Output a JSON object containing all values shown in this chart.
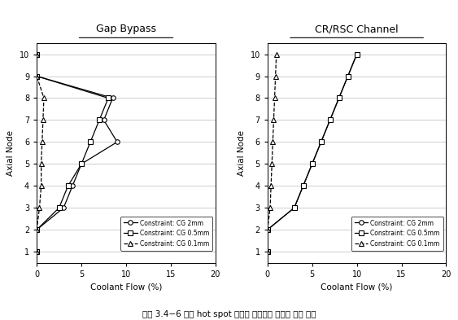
{
  "axial_nodes": [
    1,
    2,
    3,
    4,
    5,
    6,
    7,
    8,
    9,
    10
  ],
  "gap_bypass_cg2mm": [
    0.0,
    0.0,
    3.0,
    4.0,
    5.0,
    9.0,
    7.5,
    8.5,
    0.0,
    0.0
  ],
  "gap_bypass_cg05mm": [
    0.0,
    0.0,
    2.5,
    3.5,
    5.0,
    6.0,
    7.0,
    8.0,
    0.0,
    0.0
  ],
  "gap_bypass_cg01mm": [
    0.0,
    0.0,
    0.3,
    0.5,
    0.5,
    0.6,
    0.7,
    0.8,
    0.0,
    0.0
  ],
  "crsc_cg2mm": [
    0.0,
    0.0,
    3.0,
    4.0,
    5.0,
    6.0,
    7.0,
    8.0,
    9.0,
    10.0
  ],
  "crsc_cg05mm": [
    0.0,
    0.0,
    3.0,
    4.0,
    5.0,
    6.0,
    7.0,
    8.0,
    9.0,
    10.0
  ],
  "crsc_cg01mm": [
    0.0,
    0.0,
    0.3,
    0.4,
    0.5,
    0.6,
    0.7,
    0.8,
    0.9,
    1.0
  ],
  "title_left": "Gap Bypass",
  "title_right": "CR/RSC Channel",
  "xlabel": "Coolant Flow (%)",
  "ylabel": "Axial Node",
  "xlim": [
    0,
    20
  ],
  "xticks": [
    0,
    5,
    10,
    15,
    20
  ],
  "yticks": [
    1,
    2,
    3,
    4,
    5,
    6,
    7,
    8,
    9,
    10
  ],
  "legend_labels": [
    "Constraint: CG 2mm",
    "Constraint: CG 0.5mm",
    "Constraint: CG 0.1mm"
  ],
  "caption": "그림 3.4−6 노심 hot spot 해석시 우회유량 분포의 계산 결과",
  "bg_color": "#ffffff",
  "line_color": "#000000"
}
